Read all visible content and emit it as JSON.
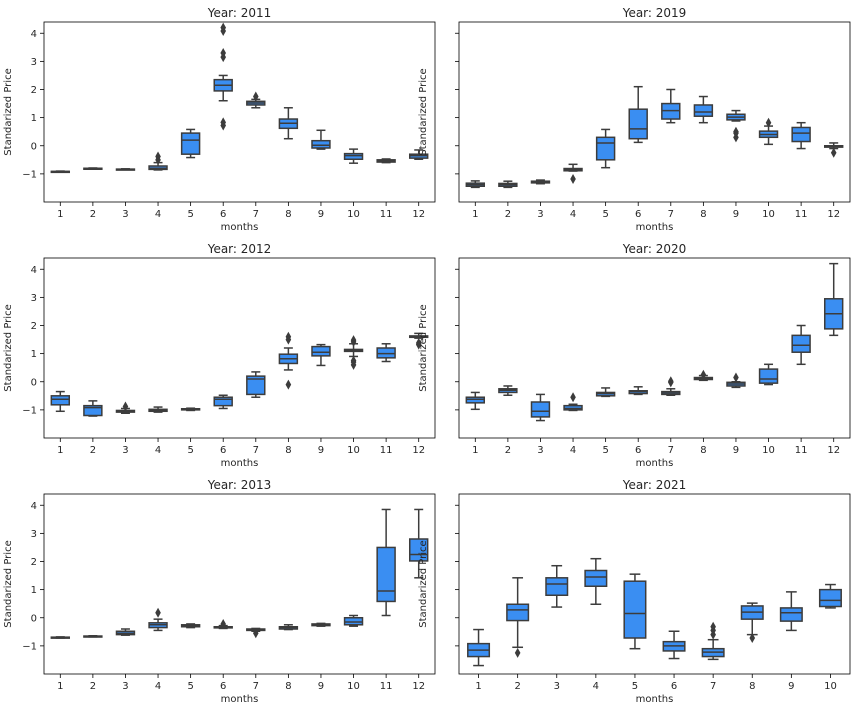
{
  "colors": {
    "box_fill": "#3a8ef2",
    "box_line": "#3c3c3c",
    "axes": "#000000"
  },
  "chart_data": [
    {
      "type": "box",
      "title": "Year: 2011",
      "xlabel": "months",
      "ylabel": "Standarized Price",
      "ylim": [
        -2.0,
        4.4
      ],
      "yticks": [
        -1,
        0,
        1,
        2,
        3,
        4
      ],
      "categories": [
        "1",
        "2",
        "3",
        "4",
        "5",
        "6",
        "7",
        "8",
        "9",
        "10",
        "11",
        "12"
      ],
      "boxes": [
        {
          "min": -0.94,
          "q1": -0.93,
          "median": -0.92,
          "q3": -0.91,
          "max": -0.9,
          "outliers": []
        },
        {
          "min": -0.83,
          "q1": -0.82,
          "median": -0.81,
          "q3": -0.8,
          "max": -0.79,
          "outliers": []
        },
        {
          "min": -0.85,
          "q1": -0.84,
          "median": -0.84,
          "q3": -0.83,
          "max": -0.82,
          "outliers": []
        },
        {
          "min": -0.86,
          "q1": -0.84,
          "median": -0.8,
          "q3": -0.72,
          "max": -0.6,
          "outliers": [
            -0.5,
            -0.38
          ]
        },
        {
          "min": -0.42,
          "q1": -0.3,
          "median": 0.2,
          "q3": 0.45,
          "max": 0.58,
          "outliers": []
        },
        {
          "min": 1.6,
          "q1": 1.95,
          "median": 2.15,
          "q3": 2.35,
          "max": 2.5,
          "outliers": [
            0.72,
            0.83,
            3.15,
            3.3,
            4.08,
            4.2
          ]
        },
        {
          "min": 1.35,
          "q1": 1.45,
          "median": 1.52,
          "q3": 1.58,
          "max": 1.65,
          "outliers": [
            1.75
          ]
        },
        {
          "min": 0.25,
          "q1": 0.62,
          "median": 0.8,
          "q3": 0.95,
          "max": 1.35,
          "outliers": []
        },
        {
          "min": -0.12,
          "q1": -0.08,
          "median": 0.02,
          "q3": 0.18,
          "max": 0.55,
          "outliers": []
        },
        {
          "min": -0.62,
          "q1": -0.48,
          "median": -0.35,
          "q3": -0.28,
          "max": -0.12,
          "outliers": []
        },
        {
          "min": -0.6,
          "q1": -0.58,
          "median": -0.55,
          "q3": -0.5,
          "max": -0.47,
          "outliers": []
        },
        {
          "min": -0.48,
          "q1": -0.44,
          "median": -0.35,
          "q3": -0.3,
          "max": -0.15,
          "outliers": []
        }
      ]
    },
    {
      "type": "box",
      "title": "Year: 2019",
      "xlabel": "months",
      "ylabel": "Standarized Price",
      "ylim": [
        -2.0,
        4.4
      ],
      "yticks": [
        -1,
        0,
        1,
        2,
        3,
        4
      ],
      "categories": [
        "1",
        "2",
        "3",
        "4",
        "5",
        "6",
        "7",
        "8",
        "9",
        "10",
        "11",
        "12"
      ],
      "boxes": [
        {
          "min": -1.48,
          "q1": -1.44,
          "median": -1.38,
          "q3": -1.33,
          "max": -1.25,
          "outliers": []
        },
        {
          "min": -1.48,
          "q1": -1.44,
          "median": -1.38,
          "q3": -1.34,
          "max": -1.26,
          "outliers": []
        },
        {
          "min": -1.35,
          "q1": -1.32,
          "median": -1.3,
          "q3": -1.26,
          "max": -1.22,
          "outliers": []
        },
        {
          "min": -0.9,
          "q1": -0.89,
          "median": -0.85,
          "q3": -0.81,
          "max": -0.66,
          "outliers": [
            -1.18
          ]
        },
        {
          "min": -0.78,
          "q1": -0.5,
          "median": 0.1,
          "q3": 0.3,
          "max": 0.58,
          "outliers": []
        },
        {
          "min": 0.12,
          "q1": 0.25,
          "median": 0.6,
          "q3": 1.3,
          "max": 2.1,
          "outliers": []
        },
        {
          "min": 0.82,
          "q1": 0.95,
          "median": 1.25,
          "q3": 1.5,
          "max": 2.0,
          "outliers": []
        },
        {
          "min": 0.82,
          "q1": 1.05,
          "median": 1.2,
          "q3": 1.45,
          "max": 1.75,
          "outliers": []
        },
        {
          "min": 0.88,
          "q1": 0.92,
          "median": 1.02,
          "q3": 1.12,
          "max": 1.25,
          "outliers": [
            0.3,
            0.45,
            0.5
          ]
        },
        {
          "min": 0.05,
          "q1": 0.3,
          "median": 0.4,
          "q3": 0.52,
          "max": 0.7,
          "outliers": [
            0.82
          ]
        },
        {
          "min": -0.1,
          "q1": 0.15,
          "median": 0.45,
          "q3": 0.65,
          "max": 0.82,
          "outliers": []
        },
        {
          "min": -0.1,
          "q1": -0.05,
          "median": -0.02,
          "q3": 0.0,
          "max": 0.1,
          "outliers": [
            -0.25
          ]
        }
      ]
    },
    {
      "type": "box",
      "title": "Year: 2012",
      "xlabel": "months",
      "ylabel": "Standarized Price",
      "ylim": [
        -2.0,
        4.4
      ],
      "yticks": [
        -1,
        0,
        1,
        2,
        3,
        4
      ],
      "categories": [
        "1",
        "2",
        "3",
        "4",
        "5",
        "6",
        "7",
        "8",
        "9",
        "10",
        "11",
        "12"
      ],
      "boxes": [
        {
          "min": -1.05,
          "q1": -0.82,
          "median": -0.62,
          "q3": -0.5,
          "max": -0.35,
          "outliers": []
        },
        {
          "min": -1.22,
          "q1": -1.2,
          "median": -0.92,
          "q3": -0.85,
          "max": -0.68,
          "outliers": []
        },
        {
          "min": -1.12,
          "q1": -1.08,
          "median": -1.05,
          "q3": -1.02,
          "max": -0.95,
          "outliers": [
            -0.88
          ]
        },
        {
          "min": -1.08,
          "q1": -1.05,
          "median": -1.02,
          "q3": -0.98,
          "max": -0.9,
          "outliers": []
        },
        {
          "min": -1.02,
          "q1": -1.0,
          "median": -0.98,
          "q3": -0.96,
          "max": -0.94,
          "outliers": []
        },
        {
          "min": -0.95,
          "q1": -0.85,
          "median": -0.62,
          "q3": -0.55,
          "max": -0.48,
          "outliers": []
        },
        {
          "min": -0.55,
          "q1": -0.45,
          "median": 0.1,
          "q3": 0.2,
          "max": 0.35,
          "outliers": []
        },
        {
          "min": 0.42,
          "q1": 0.65,
          "median": 0.82,
          "q3": 0.98,
          "max": 1.2,
          "outliers": [
            -0.1,
            1.5,
            1.6
          ]
        },
        {
          "min": 0.58,
          "q1": 0.92,
          "median": 1.05,
          "q3": 1.25,
          "max": 1.32,
          "outliers": []
        },
        {
          "min": 0.9,
          "q1": 1.08,
          "median": 1.12,
          "q3": 1.15,
          "max": 1.35,
          "outliers": [
            0.6,
            0.7,
            0.75,
            1.42,
            1.48
          ]
        },
        {
          "min": 0.72,
          "q1": 0.85,
          "median": 1.0,
          "q3": 1.2,
          "max": 1.35,
          "outliers": []
        },
        {
          "min": 1.55,
          "q1": 1.58,
          "median": 1.6,
          "q3": 1.63,
          "max": 1.72,
          "outliers": [
            1.32,
            1.38
          ]
        }
      ]
    },
    {
      "type": "box",
      "title": "Year: 2020",
      "xlabel": "months",
      "ylabel": "Standarized Price",
      "ylim": [
        -2.0,
        4.4
      ],
      "yticks": [
        -1,
        0,
        1,
        2,
        3,
        4
      ],
      "categories": [
        "1",
        "2",
        "3",
        "4",
        "5",
        "6",
        "7",
        "8",
        "9",
        "10",
        "11",
        "12"
      ],
      "boxes": [
        {
          "min": -0.98,
          "q1": -0.75,
          "median": -0.62,
          "q3": -0.55,
          "max": -0.38,
          "outliers": []
        },
        {
          "min": -0.48,
          "q1": -0.38,
          "median": -0.3,
          "q3": -0.25,
          "max": -0.15,
          "outliers": []
        },
        {
          "min": -1.38,
          "q1": -1.25,
          "median": -1.05,
          "q3": -0.72,
          "max": -0.45,
          "outliers": []
        },
        {
          "min": -1.02,
          "q1": -1.0,
          "median": -0.95,
          "q3": -0.85,
          "max": -0.8,
          "outliers": [
            -0.55
          ]
        },
        {
          "min": -0.52,
          "q1": -0.5,
          "median": -0.42,
          "q3": -0.38,
          "max": -0.22,
          "outliers": []
        },
        {
          "min": -0.45,
          "q1": -0.42,
          "median": -0.35,
          "q3": -0.32,
          "max": -0.18,
          "outliers": []
        },
        {
          "min": -0.48,
          "q1": -0.45,
          "median": -0.4,
          "q3": -0.35,
          "max": -0.25,
          "outliers": [
            -0.02,
            0.02
          ]
        },
        {
          "min": 0.05,
          "q1": 0.08,
          "median": 0.12,
          "q3": 0.15,
          "max": 0.22,
          "outliers": [
            0.25
          ]
        },
        {
          "min": -0.2,
          "q1": -0.15,
          "median": -0.08,
          "q3": -0.02,
          "max": 0.0,
          "outliers": [
            0.15
          ]
        },
        {
          "min": -0.1,
          "q1": -0.05,
          "median": 0.1,
          "q3": 0.45,
          "max": 0.62,
          "outliers": []
        },
        {
          "min": 0.62,
          "q1": 1.05,
          "median": 1.3,
          "q3": 1.65,
          "max": 2.0,
          "outliers": []
        },
        {
          "min": 1.65,
          "q1": 1.88,
          "median": 2.42,
          "q3": 2.95,
          "max": 4.2,
          "outliers": []
        }
      ]
    },
    {
      "type": "box",
      "title": "Year: 2013",
      "xlabel": "months",
      "ylabel": "Standarized Price",
      "ylim": [
        -2.0,
        4.4
      ],
      "yticks": [
        -1,
        0,
        1,
        2,
        3,
        4
      ],
      "categories": [
        "1",
        "2",
        "3",
        "4",
        "5",
        "6",
        "7",
        "8",
        "9",
        "10",
        "11",
        "12"
      ],
      "boxes": [
        {
          "min": -0.72,
          "q1": -0.71,
          "median": -0.7,
          "q3": -0.69,
          "max": -0.68,
          "outliers": []
        },
        {
          "min": -0.68,
          "q1": -0.67,
          "median": -0.66,
          "q3": -0.65,
          "max": -0.64,
          "outliers": []
        },
        {
          "min": -0.62,
          "q1": -0.6,
          "median": -0.55,
          "q3": -0.48,
          "max": -0.4,
          "outliers": []
        },
        {
          "min": -0.45,
          "q1": -0.35,
          "median": -0.25,
          "q3": -0.18,
          "max": -0.05,
          "outliers": [
            0.18
          ]
        },
        {
          "min": -0.35,
          "q1": -0.32,
          "median": -0.28,
          "q3": -0.25,
          "max": -0.22,
          "outliers": []
        },
        {
          "min": -0.38,
          "q1": -0.36,
          "median": -0.34,
          "q3": -0.32,
          "max": -0.28,
          "outliers": [
            -0.22
          ]
        },
        {
          "min": -0.48,
          "q1": -0.45,
          "median": -0.42,
          "q3": -0.4,
          "max": -0.38,
          "outliers": [
            -0.55
          ]
        },
        {
          "min": -0.42,
          "q1": -0.4,
          "median": -0.35,
          "q3": -0.32,
          "max": -0.25,
          "outliers": []
        },
        {
          "min": -0.3,
          "q1": -0.28,
          "median": -0.25,
          "q3": -0.22,
          "max": -0.2,
          "outliers": []
        },
        {
          "min": -0.3,
          "q1": -0.25,
          "median": -0.15,
          "q3": 0.0,
          "max": 0.08,
          "outliers": []
        },
        {
          "min": 0.08,
          "q1": 0.58,
          "median": 0.95,
          "q3": 2.5,
          "max": 3.85,
          "outliers": []
        },
        {
          "min": 1.42,
          "q1": 2.02,
          "median": 2.25,
          "q3": 2.8,
          "max": 3.85,
          "outliers": []
        }
      ]
    },
    {
      "type": "box",
      "title": "Year: 2021",
      "xlabel": "months",
      "ylabel": "Standarized Price",
      "ylim": [
        -2.0,
        4.4
      ],
      "yticks": [
        -1,
        0,
        1,
        2,
        3,
        4
      ],
      "categories": [
        "1",
        "2",
        "3",
        "4",
        "5",
        "6",
        "7",
        "8",
        "9",
        "10"
      ],
      "boxes": [
        {
          "min": -1.7,
          "q1": -1.38,
          "median": -1.15,
          "q3": -0.92,
          "max": -0.42,
          "outliers": []
        },
        {
          "min": -1.05,
          "q1": -0.1,
          "median": 0.28,
          "q3": 0.48,
          "max": 1.42,
          "outliers": [
            -1.25
          ]
        },
        {
          "min": 0.38,
          "q1": 0.8,
          "median": 1.2,
          "q3": 1.42,
          "max": 1.85,
          "outliers": []
        },
        {
          "min": 0.48,
          "q1": 1.12,
          "median": 1.45,
          "q3": 1.68,
          "max": 2.1,
          "outliers": []
        },
        {
          "min": -1.1,
          "q1": -0.72,
          "median": 0.15,
          "q3": 1.3,
          "max": 1.55,
          "outliers": []
        },
        {
          "min": -1.45,
          "q1": -1.18,
          "median": -1.0,
          "q3": -0.85,
          "max": -0.48,
          "outliers": []
        },
        {
          "min": -1.48,
          "q1": -1.38,
          "median": -1.22,
          "q3": -1.1,
          "max": -0.78,
          "outliers": [
            -0.32,
            -0.45,
            -0.6
          ]
        },
        {
          "min": -0.6,
          "q1": -0.05,
          "median": 0.2,
          "q3": 0.42,
          "max": 0.52,
          "outliers": [
            -0.72
          ]
        },
        {
          "min": -0.45,
          "q1": -0.12,
          "median": 0.18,
          "q3": 0.35,
          "max": 0.92,
          "outliers": []
        },
        {
          "min": 0.35,
          "q1": 0.4,
          "median": 0.62,
          "q3": 1.0,
          "max": 1.18,
          "outliers": []
        }
      ]
    }
  ]
}
